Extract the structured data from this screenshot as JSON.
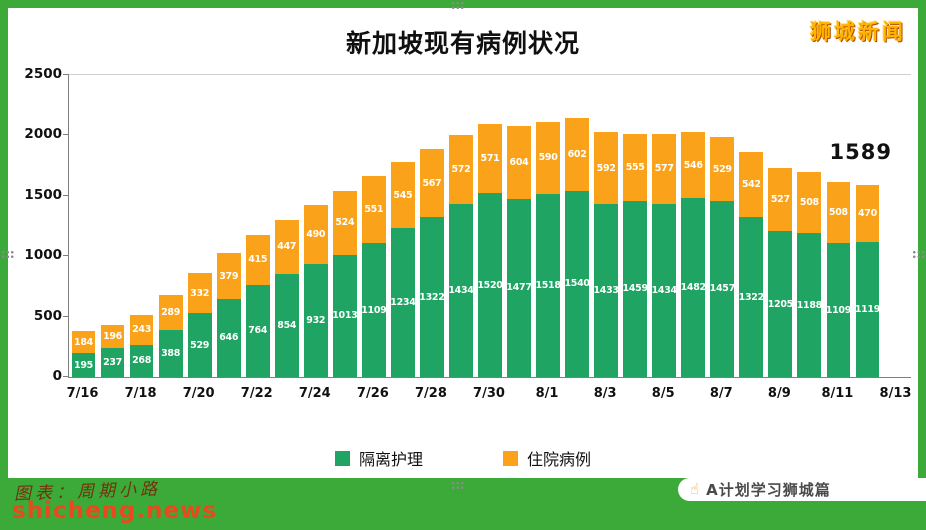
{
  "colors": {
    "page_background": "#3caa38",
    "panel_background": "#ffffff",
    "brand_text": "#ffb400",
    "site_text": "#e8491d",
    "isolation_green": "#1fa463",
    "hospital_orange": "#f9a21a"
  },
  "brand": "狮城新闻",
  "footer": {
    "credit": "图表：周期小路",
    "site": "shicheng.news",
    "ribbon": {
      "icon_glyph": "☝",
      "text": "A计划学习狮城篇"
    }
  },
  "chart_data": {
    "type": "bar",
    "stacked": true,
    "title": "新加坡现有病例状况",
    "xlabel": "",
    "ylabel": "",
    "ylim": [
      0,
      2500
    ],
    "yticks": [
      0,
      500,
      1000,
      1500,
      2000,
      2500
    ],
    "grid": "top-line-only",
    "legend_position": "bottom",
    "categories": [
      "7/16",
      "7/17",
      "7/18",
      "7/19",
      "7/20",
      "7/21",
      "7/22",
      "7/23",
      "7/24",
      "7/25",
      "7/26",
      "7/27",
      "7/28",
      "7/29",
      "7/30",
      "7/31",
      "8/1",
      "8/2",
      "8/3",
      "8/4",
      "8/5",
      "8/6",
      "8/7",
      "8/8",
      "8/9",
      "8/10",
      "8/11",
      "8/12"
    ],
    "x_tick_labels": [
      "7/16",
      "7/18",
      "7/20",
      "7/22",
      "7/24",
      "7/26",
      "7/28",
      "7/30",
      "8/1",
      "8/3",
      "8/5",
      "8/7",
      "8/9",
      "8/11",
      "8/13"
    ],
    "series": [
      {
        "name": "隔离护理",
        "color": "#1fa463",
        "values": [
          195,
          237,
          268,
          388,
          529,
          646,
          764,
          854,
          932,
          1013,
          1109,
          1234,
          1322,
          1434,
          1520,
          1477,
          1518,
          1540,
          1433,
          1459,
          1434,
          1482,
          1457,
          1322,
          1205,
          1188,
          1109,
          1119
        ]
      },
      {
        "name": "住院病例",
        "color": "#f9a21a",
        "values": [
          184,
          196,
          243,
          289,
          332,
          379,
          415,
          447,
          490,
          524,
          551,
          545,
          567,
          572,
          571,
          604,
          590,
          602,
          592,
          555,
          577,
          546,
          529,
          542,
          527,
          508,
          508,
          470
        ]
      }
    ],
    "annotation": {
      "text": "1589",
      "meaning": "last-bar-total"
    }
  }
}
